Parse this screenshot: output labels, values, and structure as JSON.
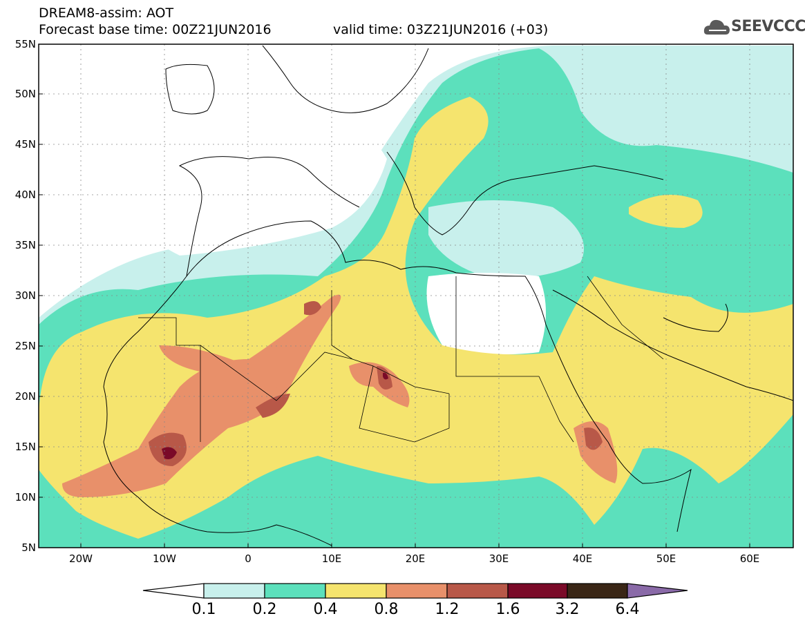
{
  "header": {
    "title_line1": "DREAM8-assim: AOT",
    "title_line2": "Forecast base time: 00Z21JUN2016",
    "valid_time": "valid time: 03Z21JUN2016 (+03)",
    "logo_text": "SEEVCCC",
    "logo_icon": "cloud-logo-icon"
  },
  "map": {
    "lat_labels": [
      "55N",
      "50N",
      "45N",
      "40N",
      "35N",
      "30N",
      "25N",
      "20N",
      "15N",
      "10N",
      "5N"
    ],
    "lon_labels": [
      "20W",
      "10W",
      "0",
      "10E",
      "20E",
      "30E",
      "40E",
      "50E",
      "60E"
    ],
    "lat_range": [
      5,
      55
    ],
    "lon_range": [
      -25,
      65
    ]
  },
  "colorbar": {
    "labels": [
      "0.1",
      "0.2",
      "0.4",
      "0.8",
      "1.2",
      "1.6",
      "3.2",
      "6.4"
    ],
    "colors": [
      "#ffffff",
      "#c8f0ec",
      "#5ce0bc",
      "#f5e46e",
      "#e8906a",
      "#b85848",
      "#7a0a28",
      "#3a2616",
      "#8a6aa8"
    ]
  }
}
